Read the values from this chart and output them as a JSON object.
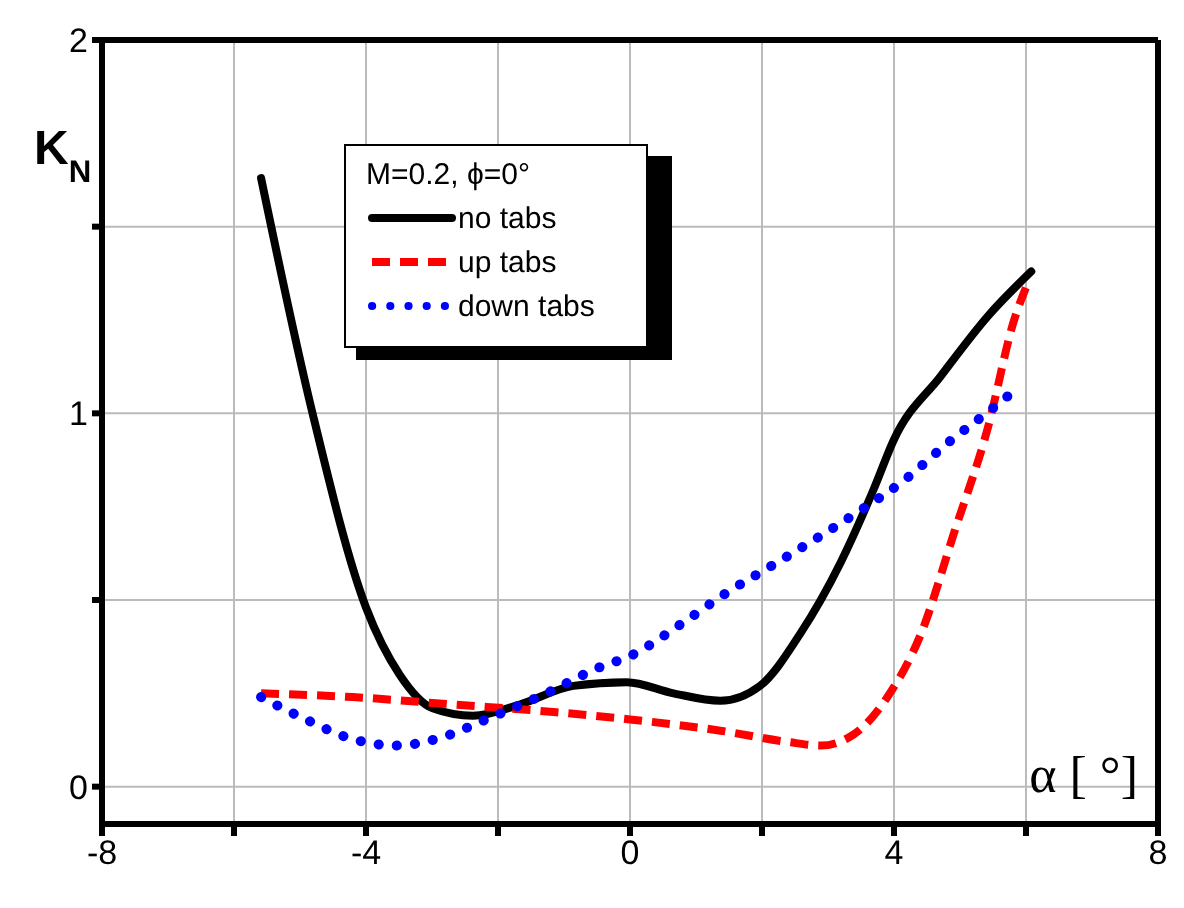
{
  "chart_data": {
    "type": "line",
    "xlabel": "α [ °]",
    "ylabel": "K$_{N}$",
    "legend_title": "M=0.2, ϕ=0°",
    "xlim": [
      -8,
      8
    ],
    "ylim": [
      -0.1,
      2
    ],
    "xticks": [
      -8,
      {
        "value": -6,
        "label": null
      },
      -4,
      {
        "value": -2,
        "label": null
      },
      0,
      {
        "value": 2,
        "label": null
      },
      4,
      {
        "value": 6,
        "label": null
      },
      8
    ],
    "yticks": [
      0,
      {
        "value": 0.5,
        "label": null
      },
      1,
      {
        "value": 1.5,
        "label": null
      },
      2
    ],
    "grid": true,
    "legend": "top left",
    "marker": "none",
    "series": [
      {
        "name": "no tabs",
        "color": "#000000",
        "line_style": "solid",
        "x": [
          -5.59,
          -4.81,
          -4.0,
          -3.49,
          -2.99,
          -2.38,
          -1.67,
          -0.86,
          -0.05,
          0.66,
          1.37,
          1.97,
          2.58,
          3.19,
          3.7,
          4.0,
          4.71,
          5.42,
          6.08
        ],
        "values": [
          1.63,
          1.0,
          0.48,
          0.3,
          0.21,
          0.19,
          0.22,
          0.27,
          0.28,
          0.25,
          0.23,
          0.27,
          0.41,
          0.6,
          0.8,
          0.93,
          1.1,
          1.26,
          1.38
        ]
      },
      {
        "name": "up tabs",
        "color": "#ff0000",
        "line_style": "dashed",
        "x": [
          -5.59,
          -4.2,
          -2.68,
          -1.16,
          0.0,
          1.37,
          2.38,
          2.89,
          3.39,
          3.9,
          4.41,
          4.91,
          5.42,
          5.82,
          6.03
        ],
        "values": [
          0.25,
          0.24,
          0.22,
          0.2,
          0.18,
          0.15,
          0.12,
          0.11,
          0.14,
          0.24,
          0.41,
          0.68,
          0.96,
          1.25,
          1.35
        ]
      },
      {
        "name": "down tabs",
        "color": "#0000ff",
        "line_style": "dotted",
        "x": [
          -5.59,
          -4.91,
          -4.25,
          -3.54,
          -2.89,
          -2.18,
          -1.27,
          -0.46,
          0.0,
          0.81,
          1.47,
          2.13,
          2.78,
          3.49,
          4.15,
          4.81,
          5.47,
          5.82
        ],
        "values": [
          0.24,
          0.18,
          0.13,
          0.11,
          0.13,
          0.18,
          0.25,
          0.32,
          0.35,
          0.44,
          0.52,
          0.59,
          0.66,
          0.74,
          0.82,
          0.92,
          1.01,
          1.06
        ]
      }
    ]
  }
}
